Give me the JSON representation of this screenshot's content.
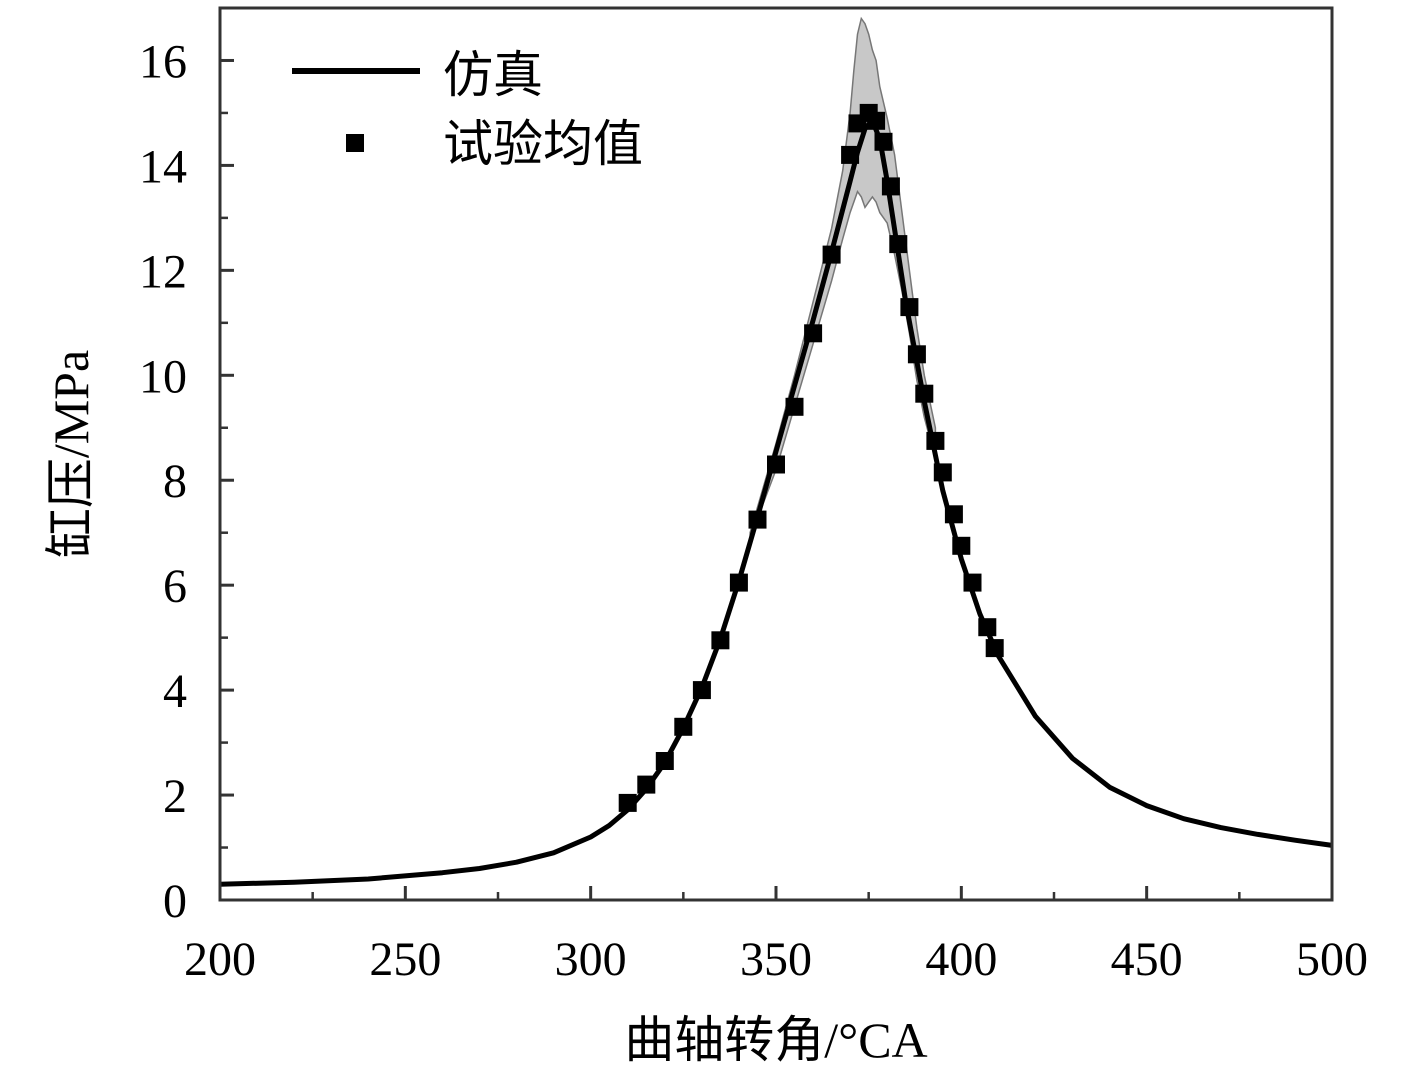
{
  "chart_data": {
    "type": "line",
    "title": "",
    "xlabel": "曲轴转角/°CA",
    "ylabel": "缸压/MPa",
    "xlim": [
      200,
      500
    ],
    "ylim": [
      0,
      17
    ],
    "x_ticks": [
      200,
      250,
      300,
      350,
      400,
      450,
      500
    ],
    "y_ticks": [
      0,
      2,
      4,
      6,
      8,
      10,
      12,
      14,
      16
    ],
    "x_tick_labels": [
      "200",
      "250",
      "300",
      "350",
      "400",
      "450",
      "500"
    ],
    "y_tick_labels": [
      "0",
      "2",
      "4",
      "6",
      "8",
      "10",
      "12",
      "14",
      "16"
    ],
    "grid": false,
    "legend_position": "top-left",
    "series": [
      {
        "name": "仿真",
        "kind": "line",
        "color": "#000000",
        "x": [
          200,
          220,
          240,
          260,
          270,
          280,
          290,
          300,
          305,
          310,
          315,
          320,
          325,
          330,
          335,
          340,
          345,
          350,
          355,
          360,
          365,
          370,
          372,
          374,
          376,
          378,
          380,
          385,
          390,
          395,
          400,
          405,
          410,
          420,
          430,
          440,
          450,
          460,
          470,
          480,
          490,
          500
        ],
        "y": [
          0.3,
          0.34,
          0.4,
          0.52,
          0.6,
          0.72,
          0.9,
          1.2,
          1.42,
          1.72,
          2.12,
          2.62,
          3.28,
          4.05,
          4.98,
          6.08,
          7.3,
          8.55,
          9.8,
          11.05,
          12.35,
          13.7,
          14.25,
          14.7,
          14.85,
          14.5,
          13.7,
          11.4,
          9.5,
          7.8,
          6.5,
          5.45,
          4.65,
          3.5,
          2.7,
          2.15,
          1.8,
          1.55,
          1.38,
          1.25,
          1.14,
          1.04
        ]
      },
      {
        "name": "试验均值",
        "kind": "scatter",
        "color": "#000000",
        "x": [
          310,
          315,
          320,
          325,
          330,
          335,
          340,
          345,
          350,
          355,
          360,
          365,
          370,
          372,
          375,
          377,
          379,
          381,
          383,
          386,
          388,
          390,
          393,
          395,
          398,
          400,
          403,
          407,
          409
        ],
        "y": [
          1.85,
          2.2,
          2.65,
          3.3,
          4.0,
          4.95,
          6.05,
          7.25,
          8.3,
          9.4,
          10.8,
          12.3,
          14.2,
          14.8,
          15.0,
          14.85,
          14.45,
          13.6,
          12.5,
          11.3,
          10.4,
          9.65,
          8.75,
          8.15,
          7.35,
          6.75,
          6.05,
          5.2,
          4.8
        ]
      }
    ],
    "band": {
      "color": "#c8c8c8",
      "x": [
        343,
        350,
        355,
        360,
        365,
        368,
        370,
        371,
        372,
        373,
        374,
        375,
        376,
        377,
        378,
        380,
        382,
        384,
        386,
        388,
        390,
        393
      ],
      "upper": [
        7.0,
        8.7,
        10.0,
        11.4,
        12.8,
        13.9,
        15.0,
        15.8,
        16.5,
        16.8,
        16.7,
        16.5,
        16.2,
        16.0,
        15.5,
        14.9,
        14.2,
        13.1,
        12.0,
        10.9,
        10.0,
        9.0
      ],
      "lower": [
        6.9,
        8.2,
        9.4,
        10.6,
        11.8,
        12.6,
        13.1,
        13.3,
        13.5,
        13.4,
        13.2,
        13.3,
        13.4,
        13.3,
        13.1,
        12.9,
        12.3,
        11.6,
        10.8,
        9.9,
        9.2,
        8.4
      ]
    }
  }
}
